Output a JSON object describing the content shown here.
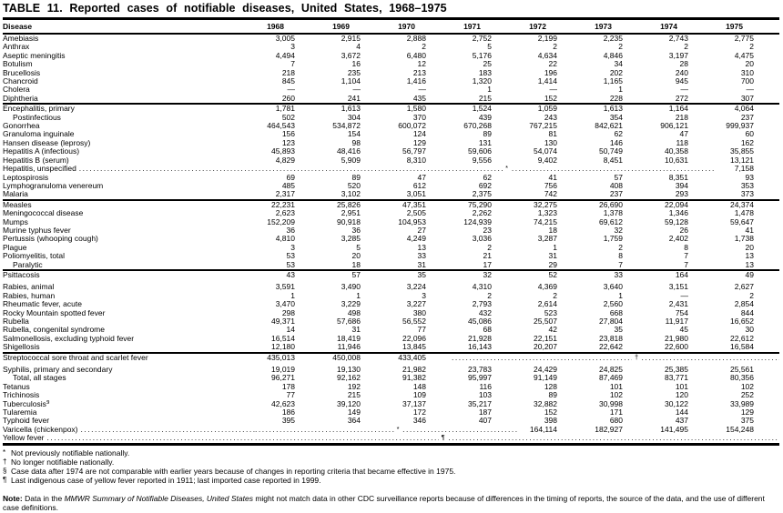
{
  "title": "TABLE 11. Reported cases of notifiable diseases, United States, 1968–1975",
  "table": {
    "columns": [
      "Disease",
      "1968",
      "1969",
      "1970",
      "1971",
      "1972",
      "1973",
      "1974",
      "1975"
    ],
    "groups": [
      {
        "rows": [
          {
            "label": "Amebiasis",
            "cells": [
              "3,005",
              "2,915",
              "2,888",
              "2,752",
              "2,199",
              "2,235",
              "2,743",
              "2,775"
            ]
          },
          {
            "label": "Anthrax",
            "cells": [
              "3",
              "4",
              "2",
              "5",
              "2",
              "2",
              "2",
              "2"
            ]
          },
          {
            "label": "Aseptic meningitis",
            "cells": [
              "4,494",
              "3,672",
              "6,480",
              "5,176",
              "4,634",
              "4,846",
              "3,197",
              "4,475"
            ]
          },
          {
            "label": "Botulism",
            "cells": [
              "7",
              "16",
              "12",
              "25",
              "22",
              "34",
              "28",
              "20"
            ]
          },
          {
            "label": "Brucellosis",
            "cells": [
              "218",
              "235",
              "213",
              "183",
              "196",
              "202",
              "240",
              "310"
            ]
          },
          {
            "label": "Chancroid",
            "cells": [
              "845",
              "1,104",
              "1,416",
              "1,320",
              "1,414",
              "1,165",
              "945",
              "700"
            ]
          },
          {
            "label": "Cholera",
            "cells": [
              "—",
              "—",
              "—",
              "1",
              "—",
              "1",
              "—",
              "—"
            ]
          },
          {
            "label": "Diphtheria",
            "cells": [
              "260",
              "241",
              "435",
              "215",
              "152",
              "228",
              "272",
              "307"
            ]
          }
        ]
      },
      {
        "rows": [
          {
            "label": "Encephalitis, primary",
            "cells": [
              "1,781",
              "1,613",
              "1,580",
              "1,524",
              "1,059",
              "1,613",
              "1,164",
              "4,064"
            ]
          },
          {
            "label": "Postinfectious",
            "indent": true,
            "cells": [
              "502",
              "304",
              "370",
              "439",
              "243",
              "354",
              "218",
              "237"
            ]
          },
          {
            "label": "Gonorrhea",
            "cells": [
              "464,543",
              "534,872",
              "600,072",
              "670,268",
              "767,215",
              "842,621",
              "906,121",
              "999,937"
            ]
          },
          {
            "label": "Granuloma inguinale",
            "cells": [
              "156",
              "154",
              "124",
              "89",
              "81",
              "62",
              "47",
              "60"
            ]
          },
          {
            "label": "Hansen disease (leprosy)",
            "cells": [
              "123",
              "98",
              "129",
              "131",
              "130",
              "146",
              "118",
              "162"
            ]
          },
          {
            "label": "Hepatitis A (infectious)",
            "cells": [
              "45,893",
              "48,416",
              "56,797",
              "59,606",
              "54,074",
              "50,749",
              "40,358",
              "35,855"
            ]
          },
          {
            "label": "Hepatitis B (serum)",
            "cells": [
              "4,829",
              "5,909",
              "8,310",
              "9,556",
              "9,402",
              "8,451",
              "10,631",
              "13,121"
            ]
          },
          {
            "label": "Hepatitis, unspecified",
            "fill": true,
            "leader": {
              "start": 0,
              "span": 7,
              "marker": "*",
              "pos": 0.54
            },
            "cells": [
              null,
              null,
              null,
              null,
              null,
              null,
              null,
              "7,158"
            ]
          },
          {
            "label": "Leptospirosis",
            "cells": [
              "69",
              "89",
              "47",
              "62",
              "41",
              "57",
              "8,351",
              "93"
            ]
          },
          {
            "label": "Lymphogranuloma venereum",
            "cells": [
              "485",
              "520",
              "612",
              "692",
              "756",
              "408",
              "394",
              "353"
            ]
          },
          {
            "label": "Malaria",
            "cells": [
              "2,317",
              "3,102",
              "3,051",
              "2,375",
              "742",
              "237",
              "293",
              "373"
            ]
          }
        ]
      },
      {
        "rows": [
          {
            "label": "Measles",
            "cells": [
              "22,231",
              "25,826",
              "47,351",
              "75,290",
              "32,275",
              "26,690",
              "22,094",
              "24,374"
            ]
          },
          {
            "label": "Meningococcal disease",
            "cells": [
              "2,623",
              "2,951",
              "2,505",
              "2,262",
              "1,323",
              "1,378",
              "1,346",
              "1,478"
            ]
          },
          {
            "label": "Mumps",
            "cells": [
              "152,209",
              "90,918",
              "104,953",
              "124,939",
              "74,215",
              "69,612",
              "59,128",
              "59,647"
            ]
          },
          {
            "label": "Murine typhus fever",
            "cells": [
              "36",
              "36",
              "27",
              "23",
              "18",
              "32",
              "26",
              "41"
            ]
          },
          {
            "label": "Pertussis (whooping cough)",
            "cells": [
              "4,810",
              "3,285",
              "4,249",
              "3,036",
              "3,287",
              "1,759",
              "2,402",
              "1,738"
            ]
          },
          {
            "label": "Plague",
            "cells": [
              "3",
              "5",
              "13",
              "2",
              "1",
              "2",
              "8",
              "20"
            ]
          },
          {
            "label": "Poliomyelitis, total",
            "cells": [
              "53",
              "20",
              "33",
              "21",
              "31",
              "8",
              "7",
              "13"
            ]
          },
          {
            "label": "Paralytic",
            "indent": true,
            "cells": [
              "53",
              "18",
              "31",
              "17",
              "29",
              "7",
              "7",
              "13"
            ]
          }
        ]
      },
      {
        "rows": [
          {
            "label": "Psittacosis",
            "gap_after": true,
            "cells": [
              "43",
              "57",
              "35",
              "32",
              "52",
              "33",
              "164",
              "49"
            ]
          },
          {
            "label": "Rabies, animal",
            "cells": [
              "3,591",
              "3,490",
              "3,224",
              "4,310",
              "4,369",
              "3,640",
              "3,151",
              "2,627"
            ]
          },
          {
            "label": "Rabies, human",
            "cells": [
              "1",
              "1",
              "3",
              "2",
              "2",
              "1",
              "—",
              "2"
            ]
          },
          {
            "label": "Rheumatic fever, acute",
            "cells": [
              "3,470",
              "3,229",
              "3,227",
              "2,793",
              "2,614",
              "2,560",
              "2,431",
              "2,854"
            ]
          },
          {
            "label": "Rocky Mountain spotted fever",
            "cells": [
              "298",
              "498",
              "380",
              "432",
              "523",
              "668",
              "754",
              "844"
            ]
          },
          {
            "label": "Rubella",
            "cells": [
              "49,371",
              "57,686",
              "56,552",
              "45,086",
              "25,507",
              "27,804",
              "11,917",
              "16,652"
            ]
          },
          {
            "label": "Rubella, congenital syndrome",
            "cells": [
              "14",
              "31",
              "77",
              "68",
              "42",
              "35",
              "45",
              "30"
            ]
          },
          {
            "label": "Salmonellosis, excluding typhoid fever",
            "cells": [
              "16,514",
              "18,419",
              "22,096",
              "21,928",
              "22,151",
              "23,818",
              "21,980",
              "22,612"
            ]
          },
          {
            "label": "Shigellosis",
            "cells": [
              "12,180",
              "11,946",
              "13,845",
              "16,143",
              "20,207",
              "22,642",
              "22,600",
              "16,584"
            ]
          }
        ]
      },
      {
        "rows": [
          {
            "label": "Streptococcal sore throat and scarlet fever",
            "gap_after": true,
            "leader": {
              "start": 3,
              "span": 5,
              "marker": "†",
              "pos": 0.55
            },
            "cells": [
              "435,013",
              "450,008",
              "433,405",
              null,
              null,
              null,
              null,
              null
            ]
          },
          {
            "label": "Syphilis, primary and secondary",
            "cells": [
              "19,019",
              "19,130",
              "21,982",
              "23,783",
              "24,429",
              "24,825",
              "25,385",
              "25,561"
            ]
          },
          {
            "label": "Total, all stages",
            "indent": true,
            "cells": [
              "96,271",
              "92,162",
              "91,382",
              "95,997",
              "91,149",
              "87,469",
              "83,771",
              "80,356"
            ]
          },
          {
            "label": "Tetanus",
            "cells": [
              "178",
              "192",
              "148",
              "116",
              "128",
              "101",
              "101",
              "102"
            ]
          },
          {
            "label": "Trichinosis",
            "cells": [
              "77",
              "215",
              "109",
              "103",
              "89",
              "102",
              "120",
              "252"
            ]
          },
          {
            "label": "Tuberculosis",
            "sup": "§",
            "cells": [
              "42,623",
              "39,120",
              "37,137",
              "35,217",
              "32,882",
              "30,998",
              "30,122",
              "33,989"
            ]
          },
          {
            "label": "Tularemia",
            "cells": [
              "186",
              "149",
              "172",
              "187",
              "152",
              "171",
              "144",
              "129"
            ]
          },
          {
            "label": "Typhoid fever",
            "cells": [
              "395",
              "364",
              "346",
              "407",
              "398",
              "680",
              "437",
              "375"
            ]
          },
          {
            "label": "Varicella (chickenpox)",
            "fill": true,
            "leader": {
              "start": 0,
              "span": 4,
              "marker": "*",
              "pos": 0.53
            },
            "cells": [
              null,
              null,
              null,
              null,
              "164,114",
              "182,927",
              "141,495",
              "154,248"
            ]
          },
          {
            "label": "Yellow fever",
            "fill": true,
            "leader": {
              "start": 0,
              "span": 8,
              "marker": "¶",
              "pos": 0.35
            },
            "cells": [
              null,
              null,
              null,
              null,
              null,
              null,
              null,
              null
            ]
          }
        ]
      }
    ]
  },
  "footnotes": [
    {
      "marker": "*",
      "text": "Not previously notifiable nationally."
    },
    {
      "marker": "†",
      "text": "No longer notifiable nationally."
    },
    {
      "marker": "§",
      "text": "Case data after 1974 are not comparable with earlier years because of changes in reporting criteria that became effective in 1975."
    },
    {
      "marker": "¶",
      "text": "Last indigenous case of yellow fever reported in 1911; last imported case reported in 1999."
    }
  ],
  "note": {
    "label": "Note:",
    "pre_italic": " Data in the ",
    "italic": "MMWR Summary of Notifiable Diseases, United States",
    "post_italic": " might not match data in other CDC surveillance reports because of differences in the timing of reports, the source of the data, and the use of different case definitions."
  }
}
